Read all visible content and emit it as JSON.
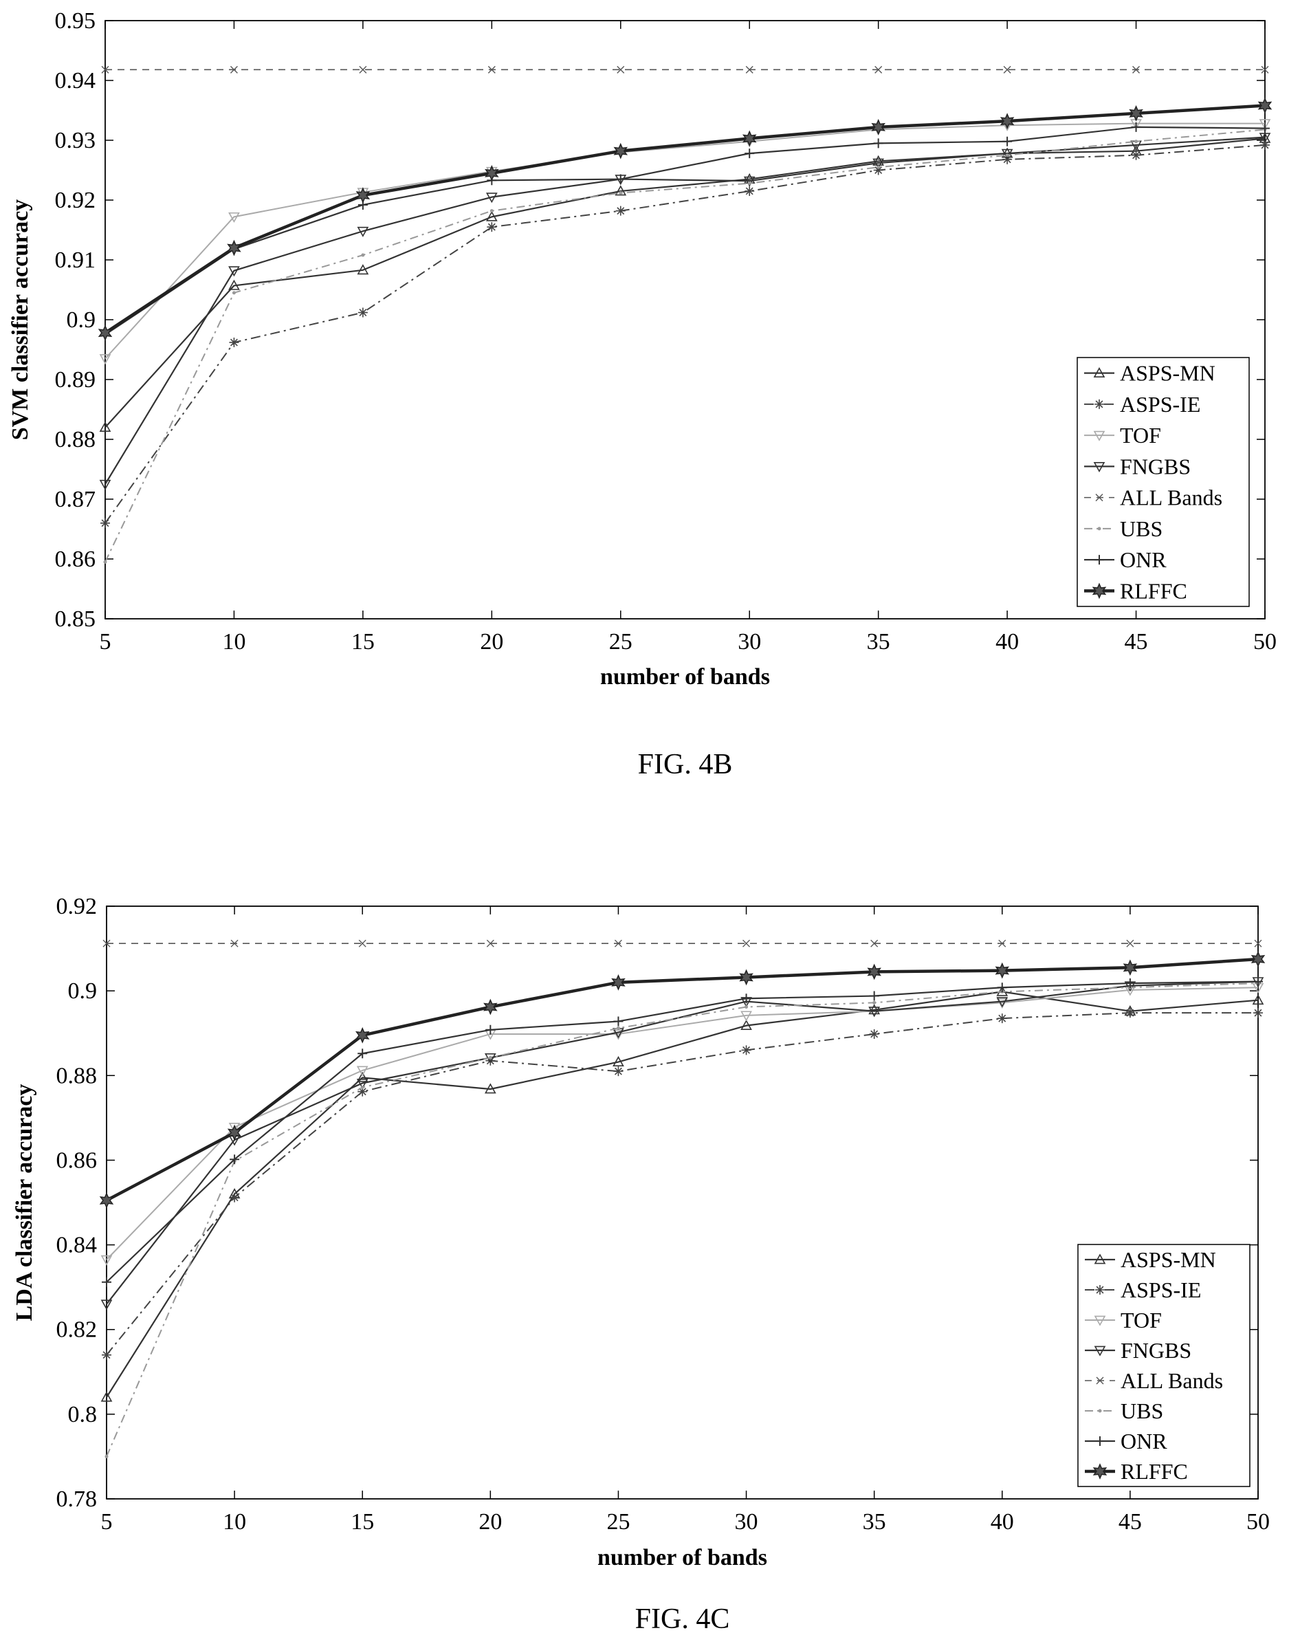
{
  "chart_data": [
    {
      "type": "line",
      "caption": "FIG. 4B",
      "xlabel": "number of bands",
      "ylabel": "SVM classifier accuracy",
      "xlim": [
        5,
        50
      ],
      "ylim": [
        0.85,
        0.95
      ],
      "x_ticks": [
        5,
        10,
        15,
        20,
        25,
        30,
        35,
        40,
        45,
        50
      ],
      "y_ticks": [
        "0.85",
        "0.86",
        "0.87",
        "0.88",
        "0.89",
        "0.9",
        "0.91",
        "0.92",
        "0.93",
        "0.94",
        "0.95"
      ],
      "legend_position": "bottom-right",
      "x": [
        5,
        10,
        15,
        20,
        25,
        30,
        35,
        40,
        45,
        50
      ],
      "series": [
        {
          "name": "ASPS-MN",
          "style": "solid",
          "marker": "triangle-up",
          "values": [
            0.882,
            0.9057,
            0.9083,
            0.9172,
            0.9215,
            0.9235,
            0.9265,
            0.9278,
            0.9282,
            0.9303
          ]
        },
        {
          "name": "ASPS-IE",
          "style": "dashdot",
          "marker": "star",
          "values": [
            0.866,
            0.8962,
            0.9012,
            0.9155,
            0.9182,
            0.9215,
            0.925,
            0.9268,
            0.9275,
            0.9292
          ]
        },
        {
          "name": "TOF",
          "style": "light",
          "marker": "triangle-down",
          "values": [
            0.8935,
            0.9172,
            0.9213,
            0.9248,
            0.928,
            0.9298,
            0.9318,
            0.9325,
            0.9328,
            0.9328
          ]
        },
        {
          "name": "FNGBS",
          "style": "solid",
          "marker": "triangle-down",
          "values": [
            0.8725,
            0.9082,
            0.9148,
            0.9205,
            0.9235,
            0.9232,
            0.9262,
            0.9278,
            0.9292,
            0.9305
          ]
        },
        {
          "name": "ALL Bands",
          "style": "dashed",
          "marker": "x",
          "values": [
            0.9418,
            0.9418,
            0.9418,
            0.9418,
            0.9418,
            0.9418,
            0.9418,
            0.9418,
            0.9418,
            0.9418
          ]
        },
        {
          "name": "UBS",
          "style": "dashdot-light",
          "marker": "dot",
          "values": [
            0.8595,
            0.9045,
            0.9108,
            0.9182,
            0.9212,
            0.9228,
            0.9255,
            0.9275,
            0.9298,
            0.9318
          ]
        },
        {
          "name": "ONR",
          "style": "solid",
          "marker": "plus",
          "values": [
            0.8975,
            0.9118,
            0.9192,
            0.9233,
            0.9235,
            0.9278,
            0.9295,
            0.9298,
            0.9322,
            0.932
          ]
        },
        {
          "name": "RLFFC",
          "style": "bold",
          "marker": "hexstar",
          "values": [
            0.8978,
            0.912,
            0.9208,
            0.9245,
            0.9282,
            0.9303,
            0.9322,
            0.9332,
            0.9345,
            0.9358
          ]
        }
      ]
    },
    {
      "type": "line",
      "caption": "FIG. 4C",
      "xlabel": "number of bands",
      "ylabel": "LDA classifier accuracy",
      "xlim": [
        5,
        50
      ],
      "ylim": [
        0.78,
        0.92
      ],
      "x_ticks": [
        5,
        10,
        15,
        20,
        25,
        30,
        35,
        40,
        45,
        50
      ],
      "y_ticks": [
        "0.78",
        "0.8",
        "0.82",
        "0.84",
        "0.86",
        "0.88",
        "0.9",
        "0.92"
      ],
      "legend_position": "bottom-right",
      "x": [
        5,
        10,
        15,
        20,
        25,
        30,
        35,
        40,
        45,
        50
      ],
      "series": [
        {
          "name": "ASPS-MN",
          "style": "solid",
          "marker": "triangle-up",
          "values": [
            0.804,
            0.852,
            0.8795,
            0.8768,
            0.8832,
            0.8918,
            0.8955,
            0.8998,
            0.8952,
            0.8978
          ]
        },
        {
          "name": "ASPS-IE",
          "style": "dashdot",
          "marker": "star",
          "values": [
            0.814,
            0.8512,
            0.8762,
            0.8835,
            0.881,
            0.886,
            0.8898,
            0.8935,
            0.8948,
            0.8948
          ]
        },
        {
          "name": "TOF",
          "style": "light",
          "marker": "triangle-down",
          "values": [
            0.8365,
            0.8678,
            0.8812,
            0.8898,
            0.8898,
            0.8942,
            0.8952,
            0.8972,
            0.9002,
            0.9008
          ]
        },
        {
          "name": "FNGBS",
          "style": "solid",
          "marker": "triangle-down",
          "values": [
            0.826,
            0.8648,
            0.8782,
            0.8842,
            0.8902,
            0.8975,
            0.8952,
            0.8975,
            0.9012,
            0.9022
          ]
        },
        {
          "name": "ALL Bands",
          "style": "dashed",
          "marker": "x",
          "values": [
            0.9112,
            0.9112,
            0.9112,
            0.9112,
            0.9112,
            0.9112,
            0.9112,
            0.9112,
            0.9112,
            0.9112
          ]
        },
        {
          "name": "UBS",
          "style": "dashdot-light",
          "marker": "dot",
          "values": [
            0.79,
            0.8598,
            0.8772,
            0.8842,
            0.8912,
            0.8962,
            0.8972,
            0.8998,
            0.9008,
            0.9018
          ]
        },
        {
          "name": "ONR",
          "style": "solid",
          "marker": "plus",
          "values": [
            0.8312,
            0.8602,
            0.8852,
            0.8908,
            0.8928,
            0.8982,
            0.8988,
            0.9008,
            0.9018,
            0.9022
          ]
        },
        {
          "name": "RLFFC",
          "style": "bold",
          "marker": "hexstar",
          "values": [
            0.8505,
            0.8665,
            0.8895,
            0.8962,
            0.902,
            0.9032,
            0.9045,
            0.9048,
            0.9055,
            0.9075
          ]
        }
      ]
    }
  ]
}
